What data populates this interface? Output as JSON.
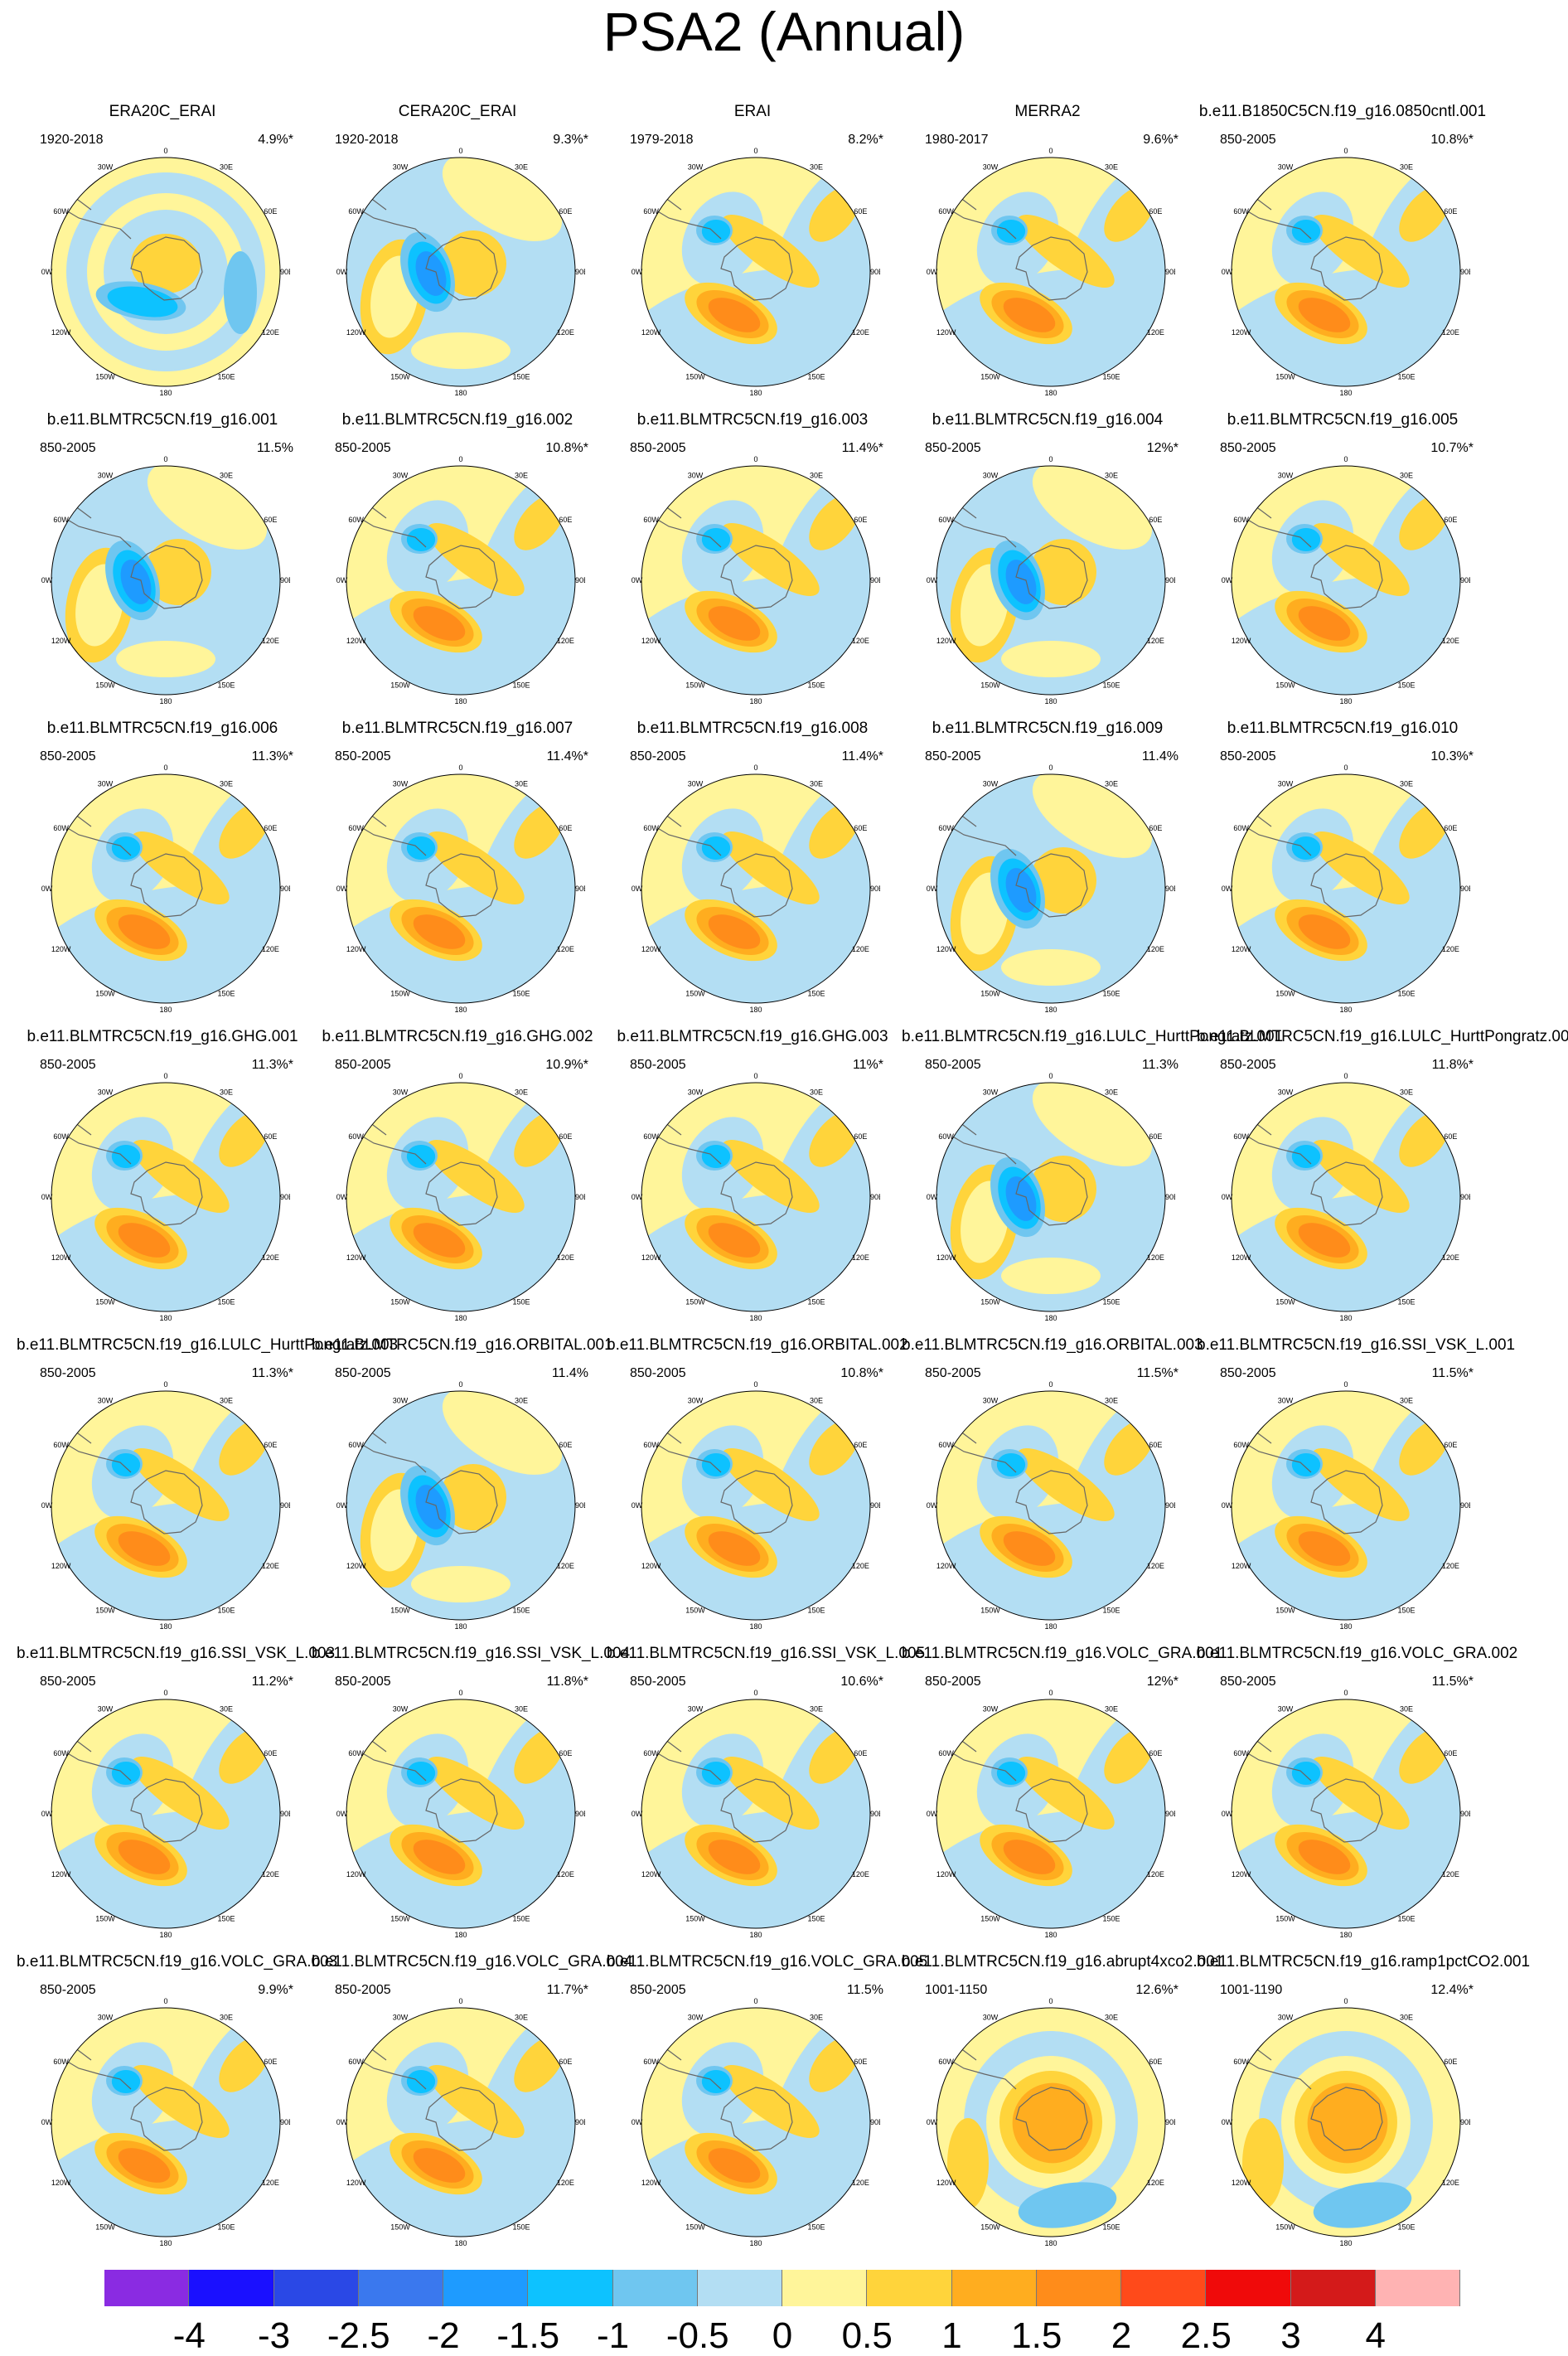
{
  "title": "PSA2 (Annual)",
  "lon_labels": [
    "0",
    "30E",
    "60E",
    "90E",
    "120E",
    "150E",
    "180",
    "150W",
    "120W",
    "90W",
    "60W",
    "30W"
  ],
  "panels": [
    {
      "name": "ERA20C_ERAI",
      "period": "1920-2018",
      "pct": "4.9%*",
      "style": 1
    },
    {
      "name": "CERA20C_ERAI",
      "period": "1920-2018",
      "pct": "9.3%*",
      "style": 2
    },
    {
      "name": "ERAI",
      "period": "1979-2018",
      "pct": "8.2%*",
      "style": 0
    },
    {
      "name": "MERRA2",
      "period": "1980-2017",
      "pct": "9.6%*",
      "style": 0
    },
    {
      "name": "b.e11.B1850C5CN.f19_g16.0850cntl.001",
      "period": "850-2005",
      "pct": "10.8%*",
      "style": 0
    },
    {
      "name": "b.e11.BLMTRC5CN.f19_g16.001",
      "period": "850-2005",
      "pct": "11.5%",
      "style": 2
    },
    {
      "name": "b.e11.BLMTRC5CN.f19_g16.002",
      "period": "850-2005",
      "pct": "10.8%*",
      "style": 0
    },
    {
      "name": "b.e11.BLMTRC5CN.f19_g16.003",
      "period": "850-2005",
      "pct": "11.4%*",
      "style": 0
    },
    {
      "name": "b.e11.BLMTRC5CN.f19_g16.004",
      "period": "850-2005",
      "pct": "12%*",
      "style": 2
    },
    {
      "name": "b.e11.BLMTRC5CN.f19_g16.005",
      "period": "850-2005",
      "pct": "10.7%*",
      "style": 0
    },
    {
      "name": "b.e11.BLMTRC5CN.f19_g16.006",
      "period": "850-2005",
      "pct": "11.3%*",
      "style": 0
    },
    {
      "name": "b.e11.BLMTRC5CN.f19_g16.007",
      "period": "850-2005",
      "pct": "11.4%*",
      "style": 0
    },
    {
      "name": "b.e11.BLMTRC5CN.f19_g16.008",
      "period": "850-2005",
      "pct": "11.4%*",
      "style": 0
    },
    {
      "name": "b.e11.BLMTRC5CN.f19_g16.009",
      "period": "850-2005",
      "pct": "11.4%",
      "style": 2
    },
    {
      "name": "b.e11.BLMTRC5CN.f19_g16.010",
      "period": "850-2005",
      "pct": "10.3%*",
      "style": 0
    },
    {
      "name": "b.e11.BLMTRC5CN.f19_g16.GHG.001",
      "period": "850-2005",
      "pct": "11.3%*",
      "style": 0
    },
    {
      "name": "b.e11.BLMTRC5CN.f19_g16.GHG.002",
      "period": "850-2005",
      "pct": "10.9%*",
      "style": 0
    },
    {
      "name": "b.e11.BLMTRC5CN.f19_g16.GHG.003",
      "period": "850-2005",
      "pct": "11%*",
      "style": 0
    },
    {
      "name": "b.e11.BLMTRC5CN.f19_g16.LULC_HurttPongratz.001",
      "period": "850-2005",
      "pct": "11.3%",
      "style": 2
    },
    {
      "name": "b.e11.BLMTRC5CN.f19_g16.LULC_HurttPongratz.002",
      "period": "850-2005",
      "pct": "11.8%*",
      "style": 0
    },
    {
      "name": "b.e11.BLMTRC5CN.f19_g16.LULC_HurttPongratz.003",
      "period": "850-2005",
      "pct": "11.3%*",
      "style": 0
    },
    {
      "name": "b.e11.BLMTRC5CN.f19_g16.ORBITAL.001",
      "period": "850-2005",
      "pct": "11.4%",
      "style": 2
    },
    {
      "name": "b.e11.BLMTRC5CN.f19_g16.ORBITAL.002",
      "period": "850-2005",
      "pct": "10.8%*",
      "style": 0
    },
    {
      "name": "b.e11.BLMTRC5CN.f19_g16.ORBITAL.003",
      "period": "850-2005",
      "pct": "11.5%*",
      "style": 0
    },
    {
      "name": "b.e11.BLMTRC5CN.f19_g16.SSI_VSK_L.001",
      "period": "850-2005",
      "pct": "11.5%*",
      "style": 0
    },
    {
      "name": "b.e11.BLMTRC5CN.f19_g16.SSI_VSK_L.003",
      "period": "850-2005",
      "pct": "11.2%*",
      "style": 0
    },
    {
      "name": "b.e11.BLMTRC5CN.f19_g16.SSI_VSK_L.004",
      "period": "850-2005",
      "pct": "11.8%*",
      "style": 0
    },
    {
      "name": "b.e11.BLMTRC5CN.f19_g16.SSI_VSK_L.005",
      "period": "850-2005",
      "pct": "10.6%*",
      "style": 0
    },
    {
      "name": "b.e11.BLMTRC5CN.f19_g16.VOLC_GRA.001",
      "period": "850-2005",
      "pct": "12%*",
      "style": 0
    },
    {
      "name": "b.e11.BLMTRC5CN.f19_g16.VOLC_GRA.002",
      "period": "850-2005",
      "pct": "11.5%*",
      "style": 0
    },
    {
      "name": "b.e11.BLMTRC5CN.f19_g16.VOLC_GRA.003",
      "period": "850-2005",
      "pct": "9.9%*",
      "style": 0
    },
    {
      "name": "b.e11.BLMTRC5CN.f19_g16.VOLC_GRA.004",
      "period": "850-2005",
      "pct": "11.7%*",
      "style": 0
    },
    {
      "name": "b.e11.BLMTRC5CN.f19_g16.VOLC_GRA.005",
      "period": "850-2005",
      "pct": "11.5%",
      "style": 0
    },
    {
      "name": "b.e11.BLMTRC5CN.f19_g16.abrupt4xco2.001",
      "period": "1001-1150",
      "pct": "12.6%*",
      "style": 3
    },
    {
      "name": "b.e11.BLMTRC5CN.f19_g16.ramp1pctCO2.001",
      "period": "1001-1190",
      "pct": "12.4%*",
      "style": 3
    }
  ],
  "colorbar": {
    "colors": [
      "#8a2be2",
      "#1a10ff",
      "#2a48e6",
      "#3a78ee",
      "#1e9bff",
      "#0dc2ff",
      "#6fc6f0",
      "#b3def3",
      "#fff59a",
      "#ffd43b",
      "#ffad1f",
      "#ff8c1a",
      "#ff4a1a",
      "#f00a0a",
      "#d41a1a",
      "#ffb3b3"
    ],
    "ticks": [
      "-4",
      "-3",
      "-2.5",
      "-2",
      "-1.5",
      "-1",
      "-0.5",
      "0",
      "0.5",
      "1",
      "1.5",
      "2",
      "2.5",
      "3",
      "4"
    ]
  }
}
